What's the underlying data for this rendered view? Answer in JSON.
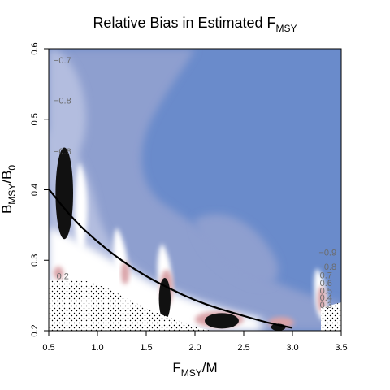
{
  "chart_data": {
    "type": "heatmap",
    "title": "Relative Bias in Estimated F",
    "title_subscript": "MSY",
    "xlabel": "F",
    "xlabel_subscript": "MSY",
    "xlabel_suffix": "/M",
    "ylabel": "B",
    "ylabel_subscript": "MSY",
    "ylabel_suffix": "/B",
    "ylabel_subscript2": "0",
    "xlim": [
      0.5,
      3.5
    ],
    "ylim": [
      0.2,
      0.6
    ],
    "x_ticks": [
      "0.5",
      "1.0",
      "1.5",
      "2.0",
      "2.5",
      "3.0",
      "3.5"
    ],
    "y_ticks": [
      "0.2",
      "0.3",
      "0.4",
      "0.5",
      "0.6"
    ],
    "grid": false,
    "legend": "none",
    "colors": {
      "very_negative": "#6a8bcb",
      "negative": "#8e9fcf",
      "mild_negative": "#b3bddf",
      "neutral": "#ffffff",
      "positive": "#d9a3a8",
      "high_bias": "#111111",
      "infeasible_dots": "#000000"
    },
    "contour_labels": [
      {
        "text": "−0.7",
        "x": 0.55,
        "y": 0.584
      },
      {
        "text": "−0.8",
        "x": 0.55,
        "y": 0.527
      },
      {
        "text": "−0.8",
        "x": 0.55,
        "y": 0.455
      },
      {
        "text": "−0.9",
        "x": 3.27,
        "y": 0.311
      },
      {
        "text": "−0.8",
        "x": 3.27,
        "y": 0.291
      },
      {
        "text": "0.7",
        "x": 3.28,
        "y": 0.279
      },
      {
        "text": "0.6",
        "x": 3.28,
        "y": 0.268
      },
      {
        "text": "0.5",
        "x": 3.28,
        "y": 0.257
      },
      {
        "text": "0.4",
        "x": 3.28,
        "y": 0.247
      },
      {
        "text": "0.3",
        "x": 3.28,
        "y": 0.237
      },
      {
        "text": "0.2",
        "x": 0.58,
        "y": 0.278
      }
    ],
    "msy_curve": {
      "x": [
        0.5,
        0.75,
        1.0,
        1.25,
        1.5,
        1.75,
        2.0,
        2.25,
        2.5,
        2.75,
        3.0
      ],
      "y": [
        0.401,
        0.358,
        0.326,
        0.299,
        0.277,
        0.259,
        0.243,
        0.231,
        0.221,
        0.211,
        0.204
      ]
    },
    "high_bias_regions": [
      {
        "x": [
          0.57,
          0.75
        ],
        "y": [
          0.33,
          0.46
        ]
      },
      {
        "x": [
          1.63,
          1.75
        ],
        "y": [
          0.215,
          0.275
        ]
      },
      {
        "x": [
          2.1,
          2.45
        ],
        "y": [
          0.203,
          0.225
        ]
      },
      {
        "x": [
          2.78,
          2.93
        ],
        "y": [
          0.2,
          0.21
        ]
      }
    ]
  }
}
